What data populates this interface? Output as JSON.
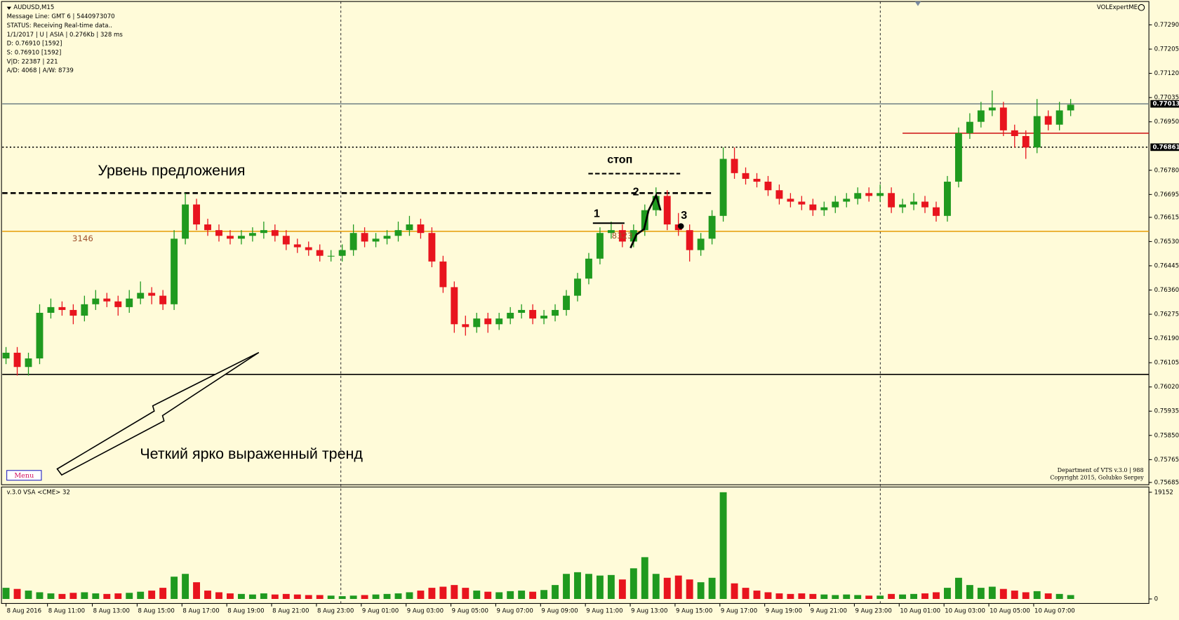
{
  "chart_data": {
    "type": "candlestick",
    "title": "AUDUSD,M15",
    "info": [
      "Message Line: GMT 6 | 5440973070",
      "STATUS:  Receiving Real-time data..",
      "1/1/2017 | U | ASIA | 0.276Kb | 328 ms",
      "D: 0.76910  [1592]",
      "S: 0.76910  [1592]",
      "V|D: 22387 | 221",
      "A/D: 4068 | A/W: 8739"
    ],
    "indicator_name": "VOLExpertME",
    "copyright": [
      "Department of VTS  v.3.0 | 988",
      "Copyright 2015, Golubko Sergey"
    ],
    "menu": "Menu",
    "annotations": {
      "supply": "Урвень предложения",
      "trend": "Четкий ярко выраженный тренд",
      "stop": "стоп",
      "p1": "1",
      "p2": "2",
      "p3": "3",
      "vol_left": "3146",
      "vol_mid": "8323"
    },
    "up_color": "#1f9a1f",
    "down_color": "#e8141e",
    "ylim": [
      0.75677,
      0.77372
    ],
    "yticks": [
      {
        "value": 0.7729,
        "label": "0.77290"
      },
      {
        "value": 0.77205,
        "label": "0.77205"
      },
      {
        "value": 0.7712,
        "label": "0.77120"
      },
      {
        "value": 0.77035,
        "label": "0.77035"
      },
      {
        "value": 0.7695,
        "label": "0.76950"
      },
      {
        "value": 0.7678,
        "label": "0.76780"
      },
      {
        "value": 0.76695,
        "label": "0.76695"
      },
      {
        "value": 0.76615,
        "label": "0.76615"
      },
      {
        "value": 0.7653,
        "label": "0.76530"
      },
      {
        "value": 0.76445,
        "label": "0.76445"
      },
      {
        "value": 0.7636,
        "label": "0.76360"
      },
      {
        "value": 0.76275,
        "label": "0.76275"
      },
      {
        "value": 0.7619,
        "label": "0.76190"
      },
      {
        "value": 0.76105,
        "label": "0.76105"
      },
      {
        "value": 0.7602,
        "label": "0.76020"
      },
      {
        "value": 0.75935,
        "label": "0.75935"
      },
      {
        "value": 0.7585,
        "label": "0.75850"
      },
      {
        "value": 0.75765,
        "label": "0.75765"
      },
      {
        "value": 0.75685,
        "label": "0.75685"
      }
    ],
    "price_markers": [
      0.77013,
      0.76861
    ],
    "levels": [
      {
        "value": 0.76064,
        "color": "#000000",
        "style": "solid",
        "span": [
          0,
          95
        ]
      },
      {
        "value": 0.76566,
        "color": "#e8a317",
        "style": "solid",
        "span": [
          0,
          95
        ]
      },
      {
        "value": 0.767,
        "color": "#000000",
        "style": "dashed",
        "span": [
          0,
          63
        ]
      },
      {
        "value": 0.7691,
        "color": "#d02020",
        "style": "solid",
        "span": [
          80,
          95
        ]
      },
      {
        "value": 0.77013,
        "color": "#7a8a8a",
        "style": "solid",
        "span": [
          0,
          95
        ]
      },
      {
        "value": 0.76861,
        "color": "#000000",
        "style": "dotted",
        "span": [
          0,
          95
        ]
      }
    ],
    "xticks": [
      {
        "value": 0,
        "label": "8 Aug 2016"
      },
      {
        "value": 3.7,
        "label": "8 Aug 11:00"
      },
      {
        "value": 7.7,
        "label": "8 Aug 13:00"
      },
      {
        "value": 11.7,
        "label": "8 Aug 15:00"
      },
      {
        "value": 15.7,
        "label": "8 Aug 17:00"
      },
      {
        "value": 19.7,
        "label": "8 Aug 19:00"
      },
      {
        "value": 23.7,
        "label": "8 Aug 21:00"
      },
      {
        "value": 27.7,
        "label": "8 Aug 23:00"
      },
      {
        "value": 31.7,
        "label": "9 Aug 01:00"
      },
      {
        "value": 35.7,
        "label": "9 Aug 03:00"
      },
      {
        "value": 39.7,
        "label": "9 Aug 05:00"
      },
      {
        "value": 43.7,
        "label": "9 Aug 07:00"
      },
      {
        "value": 47.7,
        "label": "9 Aug 09:00"
      },
      {
        "value": 51.7,
        "label": "9 Aug 11:00"
      },
      {
        "value": 55.7,
        "label": "9 Aug 13:00"
      },
      {
        "value": 59.7,
        "label": "9 Aug 15:00"
      },
      {
        "value": 63.7,
        "label": "9 Aug 17:00"
      },
      {
        "value": 67.7,
        "label": "9 Aug 19:00"
      },
      {
        "value": 71.7,
        "label": "9 Aug 21:00"
      },
      {
        "value": 75.7,
        "label": "9 Aug 23:00"
      },
      {
        "value": 79.7,
        "label": "10 Aug 01:00"
      },
      {
        "value": 83.7,
        "label": "10 Aug 03:00"
      },
      {
        "value": 87.7,
        "label": "10 Aug 05:00"
      },
      {
        "value": 91.7,
        "label": "10 Aug 07:00"
      }
    ],
    "candles": [
      [
        0.7612,
        0.7616,
        0.761,
        0.7614
      ],
      [
        0.7614,
        0.7616,
        0.7606,
        0.7609
      ],
      [
        0.7609,
        0.7614,
        0.7606,
        0.7612
      ],
      [
        0.7612,
        0.7631,
        0.761,
        0.7628
      ],
      [
        0.7628,
        0.7633,
        0.7626,
        0.763
      ],
      [
        0.763,
        0.7632,
        0.7627,
        0.7629
      ],
      [
        0.7629,
        0.7631,
        0.7624,
        0.7627
      ],
      [
        0.7627,
        0.7634,
        0.7625,
        0.7631
      ],
      [
        0.7631,
        0.7636,
        0.7629,
        0.7633
      ],
      [
        0.7633,
        0.7635,
        0.763,
        0.7632
      ],
      [
        0.7632,
        0.7634,
        0.7627,
        0.763
      ],
      [
        0.763,
        0.7636,
        0.7628,
        0.7633
      ],
      [
        0.7633,
        0.7639,
        0.7631,
        0.7635
      ],
      [
        0.7635,
        0.7637,
        0.7631,
        0.7634
      ],
      [
        0.7634,
        0.7636,
        0.7629,
        0.7631
      ],
      [
        0.7631,
        0.7657,
        0.7629,
        0.7654
      ],
      [
        0.7654,
        0.767,
        0.7652,
        0.7666
      ],
      [
        0.7666,
        0.7668,
        0.7657,
        0.7659
      ],
      [
        0.7659,
        0.7661,
        0.7655,
        0.7657
      ],
      [
        0.7657,
        0.7659,
        0.7653,
        0.7655
      ],
      [
        0.7655,
        0.7657,
        0.7652,
        0.7654
      ],
      [
        0.7654,
        0.7657,
        0.7652,
        0.7655
      ],
      [
        0.7655,
        0.7658,
        0.7653,
        0.7656
      ],
      [
        0.7656,
        0.766,
        0.7654,
        0.7657
      ],
      [
        0.7657,
        0.7659,
        0.7653,
        0.7655
      ],
      [
        0.7655,
        0.7657,
        0.765,
        0.7652
      ],
      [
        0.7652,
        0.7654,
        0.7649,
        0.7651
      ],
      [
        0.7651,
        0.7653,
        0.7648,
        0.765
      ],
      [
        0.765,
        0.7652,
        0.7646,
        0.7648
      ],
      [
        0.7648,
        0.765,
        0.7646,
        0.7648
      ],
      [
        0.7648,
        0.7652,
        0.7646,
        0.765
      ],
      [
        0.765,
        0.7659,
        0.7648,
        0.7656
      ],
      [
        0.7656,
        0.7658,
        0.7651,
        0.7653
      ],
      [
        0.7653,
        0.7656,
        0.7651,
        0.7654
      ],
      [
        0.7654,
        0.7657,
        0.7652,
        0.7655
      ],
      [
        0.7655,
        0.766,
        0.7653,
        0.7657
      ],
      [
        0.7657,
        0.7662,
        0.7655,
        0.7659
      ],
      [
        0.7659,
        0.7661,
        0.7654,
        0.7656
      ],
      [
        0.7656,
        0.7658,
        0.7644,
        0.7646
      ],
      [
        0.7646,
        0.7648,
        0.7635,
        0.7637
      ],
      [
        0.7637,
        0.7639,
        0.7621,
        0.7624
      ],
      [
        0.7624,
        0.7627,
        0.762,
        0.7623
      ],
      [
        0.7623,
        0.7628,
        0.7621,
        0.7626
      ],
      [
        0.7626,
        0.7628,
        0.7621,
        0.7624
      ],
      [
        0.7624,
        0.7628,
        0.7622,
        0.7626
      ],
      [
        0.7626,
        0.763,
        0.7624,
        0.7628
      ],
      [
        0.7628,
        0.7631,
        0.7626,
        0.7629
      ],
      [
        0.7629,
        0.7631,
        0.7624,
        0.7626
      ],
      [
        0.7626,
        0.7629,
        0.7624,
        0.7627
      ],
      [
        0.7627,
        0.7631,
        0.7625,
        0.7629
      ],
      [
        0.7629,
        0.7636,
        0.7627,
        0.7634
      ],
      [
        0.7634,
        0.7642,
        0.7632,
        0.764
      ],
      [
        0.764,
        0.7649,
        0.7638,
        0.7647
      ],
      [
        0.7647,
        0.7658,
        0.7645,
        0.7656
      ],
      [
        0.7656,
        0.766,
        0.7654,
        0.7657
      ],
      [
        0.7657,
        0.7659,
        0.7651,
        0.7653
      ],
      [
        0.7653,
        0.7659,
        0.7651,
        0.7657
      ],
      [
        0.7657,
        0.7666,
        0.7655,
        0.7664
      ],
      [
        0.7664,
        0.7672,
        0.7662,
        0.7669
      ],
      [
        0.7669,
        0.7671,
        0.7657,
        0.7659
      ],
      [
        0.7659,
        0.7663,
        0.7655,
        0.7657
      ],
      [
        0.7657,
        0.7659,
        0.7646,
        0.765
      ],
      [
        0.765,
        0.7656,
        0.7648,
        0.7654
      ],
      [
        0.7654,
        0.7664,
        0.7652,
        0.7662
      ],
      [
        0.7662,
        0.7686,
        0.766,
        0.7682
      ],
      [
        0.7682,
        0.7686,
        0.7675,
        0.7677
      ],
      [
        0.7677,
        0.7679,
        0.7673,
        0.7675
      ],
      [
        0.7675,
        0.7677,
        0.7672,
        0.7674
      ],
      [
        0.7674,
        0.7676,
        0.7669,
        0.7671
      ],
      [
        0.7671,
        0.7673,
        0.7666,
        0.7668
      ],
      [
        0.7668,
        0.767,
        0.7665,
        0.7667
      ],
      [
        0.7667,
        0.7669,
        0.7664,
        0.7666
      ],
      [
        0.7666,
        0.7668,
        0.7662,
        0.7664
      ],
      [
        0.7664,
        0.7667,
        0.7662,
        0.7665
      ],
      [
        0.7665,
        0.7669,
        0.7663,
        0.7667
      ],
      [
        0.7667,
        0.767,
        0.7665,
        0.7668
      ],
      [
        0.7668,
        0.7672,
        0.7666,
        0.767
      ],
      [
        0.767,
        0.7672,
        0.7667,
        0.7669
      ],
      [
        0.7669,
        0.7673,
        0.7667,
        0.767
      ],
      [
        0.767,
        0.7672,
        0.7663,
        0.7665
      ],
      [
        0.7665,
        0.7668,
        0.7663,
        0.7666
      ],
      [
        0.7666,
        0.767,
        0.7664,
        0.7667
      ],
      [
        0.7667,
        0.7669,
        0.7663,
        0.7665
      ],
      [
        0.7665,
        0.7667,
        0.766,
        0.7662
      ],
      [
        0.7662,
        0.7676,
        0.766,
        0.7674
      ],
      [
        0.7674,
        0.7693,
        0.7672,
        0.7691
      ],
      [
        0.7691,
        0.7698,
        0.7689,
        0.7695
      ],
      [
        0.7695,
        0.7702,
        0.7693,
        0.7699
      ],
      [
        0.7699,
        0.7706,
        0.7697,
        0.77
      ],
      [
        0.77,
        0.7702,
        0.769,
        0.7692
      ],
      [
        0.7692,
        0.7694,
        0.7686,
        0.769
      ],
      [
        0.769,
        0.7692,
        0.7682,
        0.7686
      ],
      [
        0.7686,
        0.7703,
        0.7684,
        0.7697
      ],
      [
        0.7697,
        0.7699,
        0.7692,
        0.7694
      ],
      [
        0.7694,
        0.7702,
        0.7692,
        0.7699
      ],
      [
        0.7699,
        0.7703,
        0.7697,
        0.7701
      ]
    ],
    "volume": {
      "label": "v.3.0 VSA <CME> 32",
      "ylim": [
        0,
        19152
      ],
      "yticks": [
        0,
        19152
      ],
      "values": [
        2000,
        1800,
        1500,
        1200,
        1000,
        900,
        1100,
        1200,
        1000,
        900,
        1000,
        1100,
        1300,
        1500,
        2000,
        4000,
        4500,
        3000,
        1500,
        1200,
        1000,
        900,
        800,
        1000,
        800,
        900,
        800,
        700,
        700,
        600,
        500,
        600,
        700,
        800,
        900,
        1000,
        1200,
        1500,
        2000,
        2200,
        2500,
        2000,
        1500,
        1300,
        1200,
        1400,
        1500,
        1300,
        1600,
        2500,
        4500,
        4800,
        4500,
        4200,
        4300,
        3500,
        5500,
        7500,
        4500,
        3800,
        4200,
        3500,
        3000,
        3800,
        19152,
        2800,
        2000,
        1500,
        1200,
        1000,
        900,
        1000,
        900,
        800,
        700,
        800,
        700,
        600,
        600,
        900,
        800,
        900,
        1000,
        1200,
        2000,
        3800,
        2500,
        2000,
        2200,
        1800,
        1500,
        1200,
        1400,
        1000,
        900,
        700
      ]
    }
  }
}
